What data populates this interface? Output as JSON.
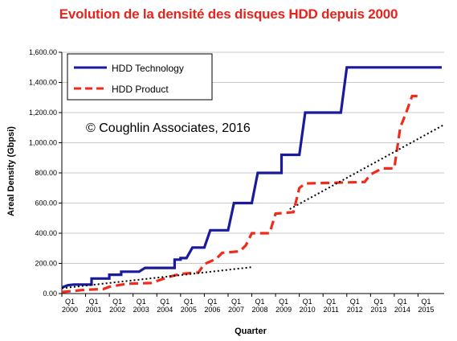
{
  "title": "Evolution de la densité des disques HDD depuis 2000",
  "chart_data": {
    "type": "line",
    "xlabel": "Quarter",
    "ylabel": "Areal Density (Gbpsi)",
    "ylim": [
      0,
      1600
    ],
    "yticks": [
      "0.00",
      "200.00",
      "400.00",
      "600.00",
      "800.00",
      "1,000.00",
      "1,200.00",
      "1,400.00",
      "1,600.00"
    ],
    "xticks": [
      {
        "q": "Q1",
        "year": "2000",
        "x": 2000
      },
      {
        "q": "Q1",
        "year": "2001",
        "x": 2001
      },
      {
        "q": "Q1",
        "year": "2002",
        "x": 2002
      },
      {
        "q": "Q1",
        "year": "2003",
        "x": 2003
      },
      {
        "q": "Q1",
        "year": "2004",
        "x": 2004
      },
      {
        "q": "Q1",
        "year": "2005",
        "x": 2005
      },
      {
        "q": "Q1",
        "year": "2006",
        "x": 2006
      },
      {
        "q": "Q1",
        "year": "2007",
        "x": 2007
      },
      {
        "q": "Q1",
        "year": "2008",
        "x": 2008
      },
      {
        "q": "Q1",
        "year": "2009",
        "x": 2009
      },
      {
        "q": "Q1",
        "year": "2010",
        "x": 2010
      },
      {
        "q": "Q1",
        "year": "2011",
        "x": 2011
      },
      {
        "q": "Q1",
        "year": "2012",
        "x": 2012
      },
      {
        "q": "Q1",
        "year": "2013",
        "x": 2013
      },
      {
        "q": "Q1",
        "year": "2014",
        "x": 2014
      },
      {
        "q": "Q1",
        "year": "2015",
        "x": 2015
      }
    ],
    "xlim": [
      2000,
      2016.1
    ],
    "grid": "horizontal",
    "legend_position": "top-left",
    "annotation": "© Coughlin Associates, 2016",
    "series": [
      {
        "name": "HDD Technology",
        "color": "#1a1a9c",
        "style": "solid",
        "points": [
          [
            2000.0,
            40
          ],
          [
            2000.25,
            55
          ],
          [
            2000.5,
            60
          ],
          [
            2001.25,
            60
          ],
          [
            2001.25,
            100
          ],
          [
            2002.0,
            100
          ],
          [
            2002.0,
            125
          ],
          [
            2002.5,
            125
          ],
          [
            2002.5,
            145
          ],
          [
            2003.25,
            145
          ],
          [
            2003.5,
            170
          ],
          [
            2004.75,
            170
          ],
          [
            2004.75,
            225
          ],
          [
            2005.0,
            225
          ],
          [
            2005.0,
            235
          ],
          [
            2005.25,
            235
          ],
          [
            2005.5,
            305
          ],
          [
            2006.0,
            305
          ],
          [
            2006.25,
            420
          ],
          [
            2007.0,
            420
          ],
          [
            2007.25,
            600
          ],
          [
            2008.0,
            600
          ],
          [
            2008.25,
            800
          ],
          [
            2009.25,
            800
          ],
          [
            2009.25,
            920
          ],
          [
            2010.0,
            920
          ],
          [
            2010.25,
            1200
          ],
          [
            2011.75,
            1200
          ],
          [
            2012.0,
            1500
          ],
          [
            2016.0,
            1500
          ]
        ]
      },
      {
        "name": "HDD Product",
        "color": "#f02b1c",
        "style": "dashed",
        "points": [
          [
            2000.0,
            10
          ],
          [
            2001.0,
            25
          ],
          [
            2001.75,
            30
          ],
          [
            2002.0,
            45
          ],
          [
            2002.75,
            65
          ],
          [
            2003.75,
            70
          ],
          [
            2004.5,
            110
          ],
          [
            2005.0,
            130
          ],
          [
            2005.75,
            140
          ],
          [
            2006.0,
            195
          ],
          [
            2006.5,
            230
          ],
          [
            2006.75,
            270
          ],
          [
            2007.5,
            280
          ],
          [
            2007.75,
            320
          ],
          [
            2008.0,
            400
          ],
          [
            2008.75,
            400
          ],
          [
            2009.0,
            530
          ],
          [
            2009.75,
            540
          ],
          [
            2010.0,
            700
          ],
          [
            2010.25,
            730
          ],
          [
            2012.75,
            740
          ],
          [
            2013.0,
            790
          ],
          [
            2013.5,
            830
          ],
          [
            2014.0,
            830
          ],
          [
            2014.25,
            1100
          ],
          [
            2014.5,
            1200
          ],
          [
            2014.75,
            1310
          ],
          [
            2015.0,
            1310
          ]
        ]
      },
      {
        "name": "",
        "color": "#000000",
        "style": "dotted",
        "points": [
          [
            2000.0,
            35
          ],
          [
            2008.0,
            175
          ]
        ]
      },
      {
        "name": "",
        "color": "#000000",
        "style": "dotted",
        "points": [
          [
            2009.6,
            560
          ],
          [
            2016.1,
            1120
          ]
        ]
      }
    ]
  }
}
